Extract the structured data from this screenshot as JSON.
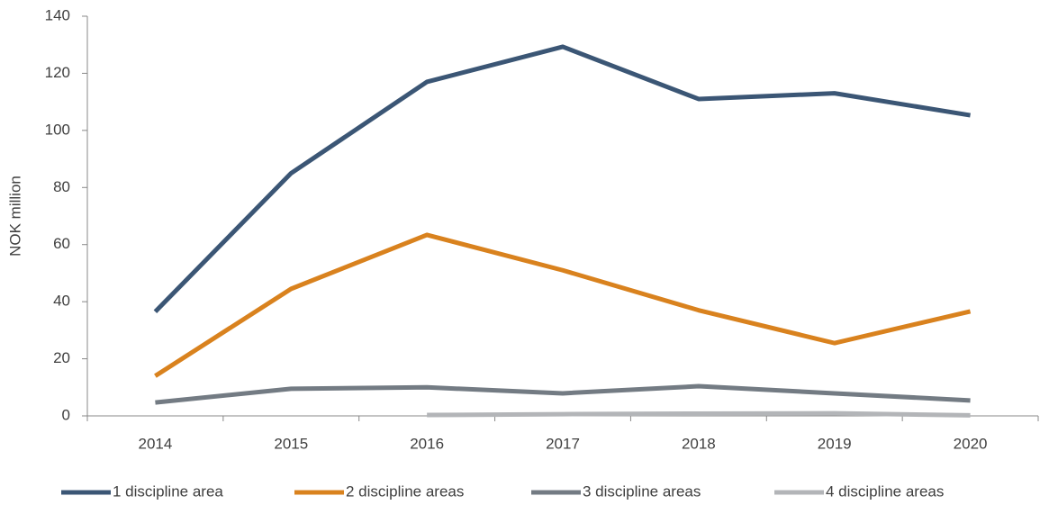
{
  "chart_data": {
    "type": "line",
    "y_label": "NOK million",
    "categories": [
      "2014",
      "2015",
      "2016",
      "2017",
      "2018",
      "2019",
      "2020"
    ],
    "series": [
      {
        "name": "1 discipline area",
        "color": "#3b5675",
        "values": [
          36.5,
          85,
          117,
          129.3,
          111,
          113,
          105.3
        ]
      },
      {
        "name": "2 discipline areas",
        "color": "#d9821e",
        "values": [
          14,
          44.5,
          63.4,
          51,
          37,
          25.5,
          36.6
        ]
      },
      {
        "name": "3 discipline areas",
        "color": "#737b83",
        "values": [
          4.7,
          9.5,
          10,
          7.9,
          10.4,
          7.9,
          5.4
        ]
      },
      {
        "name": "4 discipline areas",
        "color": "#b3b5b8",
        "values": [
          null,
          null,
          0.3,
          0.6,
          0.8,
          0.9,
          0.2
        ]
      }
    ],
    "ylim": [
      0,
      140
    ],
    "yticks": [
      0,
      20,
      40,
      60,
      80,
      100,
      120,
      140
    ],
    "legend": "bottom"
  }
}
